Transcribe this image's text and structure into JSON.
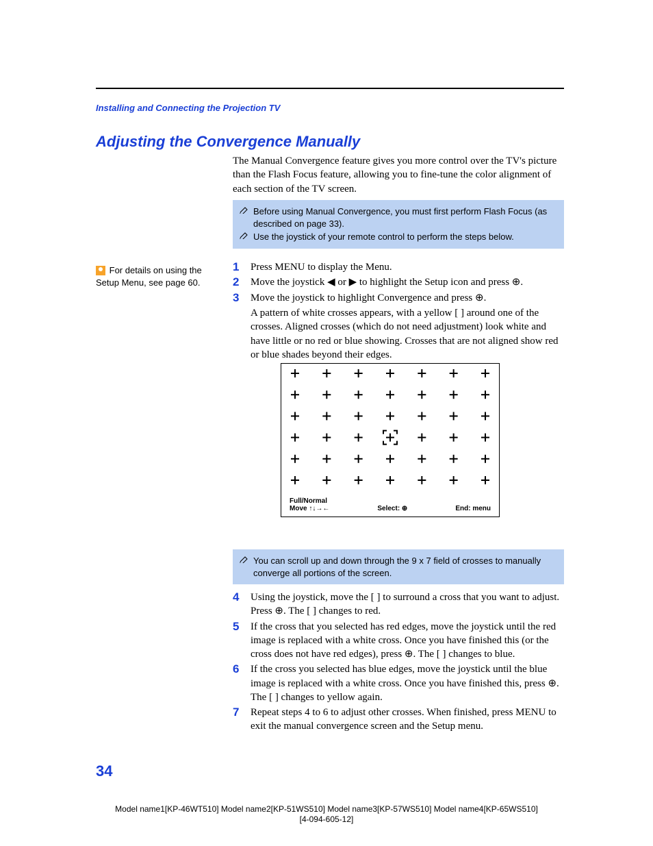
{
  "breadcrumb": "Installing and Connecting the Projection TV",
  "title": "Adjusting the Convergence Manually",
  "intro": "The Manual Convergence feature gives you more control over the TV's picture than the Flash Focus feature, allowing you to fine-tune the color alignment of each section of the TV screen.",
  "note_box1": {
    "line1": "Before using Manual Convergence, you must first perform Flash Focus (as described on page 33).",
    "line2": "Use the joystick of your remote control to perform the steps below."
  },
  "sidebar_tip": "For details on using the Setup Menu, see page 60.",
  "steps_top": [
    {
      "n": "1",
      "t": "Press MENU to display the Menu."
    },
    {
      "n": "2",
      "t": "Move the joystick ◀ or ▶ to highlight the Setup icon and press ⊕."
    },
    {
      "n": "3",
      "t": "Move the joystick to highlight Convergence and press ⊕."
    }
  ],
  "step3_detail": "A pattern of white crosses appears, with a yellow [ ] around one of the crosses. Aligned crosses (which do not need adjustment) look white and have little or no red or blue showing. Crosses that are not aligned show red or blue shades beyond their edges.",
  "diagram": {
    "rows": 6,
    "cols": 7,
    "cursor_row": 3,
    "cursor_col": 3,
    "footer_left1": "Full/Normal",
    "footer_left2": "Move ↑↓→←",
    "footer_mid": "Select: ⊕",
    "footer_right": "End: menu"
  },
  "note_box2": "You can scroll up and down through the 9 x 7 field of crosses to manually converge all portions of the screen.",
  "steps_bottom": [
    {
      "n": "4",
      "t": "Using the joystick, move the [ ] to surround a cross that you want to adjust. Press ⊕. The [ ] changes to red."
    },
    {
      "n": "5",
      "t": "If the cross that you selected has red edges, move the joystick until the red image is replaced with a white cross. Once you have finished this (or the cross does not have red edges), press ⊕. The [ ] changes to blue."
    },
    {
      "n": "6",
      "t": "If the cross you selected has blue edges, move the joystick until the blue image is replaced with a white cross. Once you have finished this, press ⊕. The [ ] changes to yellow again."
    },
    {
      "n": "7",
      "t": "Repeat steps 4 to 6 to adjust other crosses. When finished, press MENU to exit the manual convergence screen and the Setup menu."
    }
  ],
  "page_number": "34",
  "footer": {
    "models": "Model name1[KP-46WT510] Model name2[KP-51WS510] Model name3[KP-57WS510] Model name4[KP-65WS510]",
    "doc_id": "[4-094-605-12]"
  },
  "colors": {
    "accent": "#1a3fd6",
    "bluebox_bg": "#bcd2f2",
    "tip_bg": "#f7a32a"
  }
}
